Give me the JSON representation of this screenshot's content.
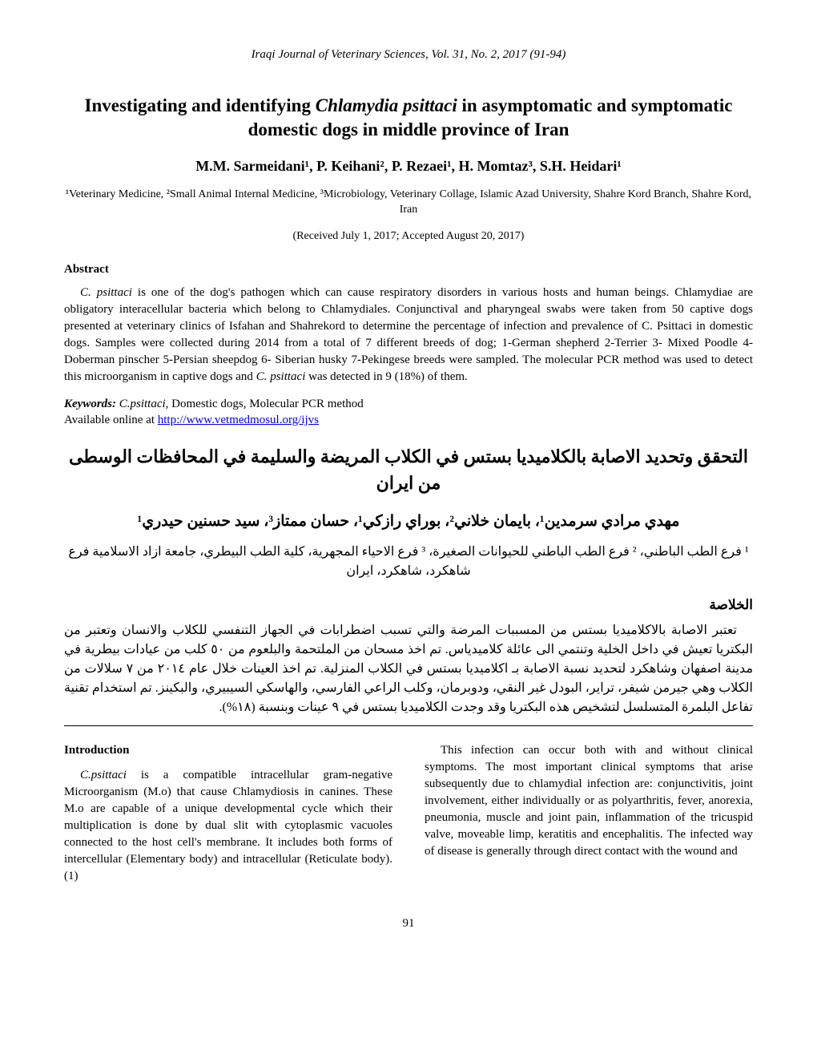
{
  "journal_header": "Iraqi Journal of Veterinary Sciences, Vol. 31, No. 2, 2017 (91-94)",
  "title_line1": "Investigating and identifying ",
  "title_italic": "Chlamydia psittaci",
  "title_line2": " in asymptomatic and symptomatic domestic dogs in middle province of Iran",
  "authors_html": "M.M. Sarmeidani¹, P. Keihani², P. Rezaei¹, H. Momtaz³, S.H. Heidari¹",
  "affiliations": "¹Veterinary Medicine, ²Small Animal Internal Medicine, ³Microbiology, Veterinary Collage, Islamic Azad University, Shahre Kord Branch, Shahre Kord, Iran",
  "dates": "(Received July 1, 2017; Accepted August 20, 2017)",
  "abstract_heading": "Abstract",
  "abstract_italic_lead": "C. psittaci",
  "abstract_text": " is one of the dog's pathogen which can cause respiratory disorders in various hosts and human beings. Chlamydiae are obligatory interacellular bacteria which belong to Chlamydiales. Conjunctival and pharyngeal swabs were taken from 50 captive dogs presented at veterinary clinics of Isfahan and Shahrekord to determine the percentage of infection and prevalence of C. Psittaci in domestic dogs. Samples were collected during 2014 from a total of 7 different breeds of dog; 1-German shepherd 2-Terrier 3- Mixed Poodle 4-Doberman pinscher 5-Persian sheepdog 6- Siberian husky 7-Pekingese breeds were sampled. The molecular PCR method was used to detect this microorganism in captive dogs and ",
  "abstract_italic_trail": "C. psittaci",
  "abstract_trail": " was detected in 9 (18%) of them.",
  "keywords_label": "Keywords:",
  "keywords_italic": " C.psittaci",
  "keywords_rest": ", Domestic dogs, Molecular PCR method",
  "available_text": "Available online at ",
  "link_text": "http://www.vetmedmosul.org/ijvs",
  "arabic_title": "التحقق وتحديد الاصابة بالكلاميديا بستس في الكلاب المريضة والسليمة في المحافظات الوسطى من ايران",
  "arabic_authors": "مهدي مرادي سرمدين¹، بايمان خلاني²، بوراي رازكي¹، حسان ممتاز³، سيد حسنين حيدري¹",
  "arabic_affiliations": "¹ فرع الطب الباطني، ² فرع الطب الباطني للحيوانات الصغيرة، ³ فرع الاحياء المجهرية، كلية الطب البيطري، جامعة ازاد الاسلامية فرع شاهكرد، شاهكرد، ايران",
  "arabic_abstract_heading": "الخلاصة",
  "arabic_abstract": "تعتبر الاصابة بالاكلاميديا بستس من المسببات المرضة والتي تسبب اضطرابات في الجهاز التنفسي للكلاب والانسان وتعتبر من البكتريا تعيش في داخل الخلية وتنتمي الى عائلة كلاميدياس. تم اخذ مسحان من الملتحمة والبلعوم من ٥٠ كلب من عيادات بيطرية في مدينة اصفهان وشاهكرد لتحديد نسبة الاصابة بـ اكلاميديا بستس في الكلاب المنزلية. تم اخذ العينات خلال عام ٢٠١٤ من ٧ سلالات من الكلاب وهي جيرمن شيفر، تراير، البودل غير النقي، ودوبرمان، وكلب الراعي الفارسي، والهاسكي السيبيري، والبكينز. تم استخدام تقنية تفاعل البلمرة المتسلسل لتشخيص هذه البكتريا وقد وجدت الكلاميديا بستس في ٩ عينات وبنسبة (١٨%).",
  "introduction_heading": "Introduction",
  "intro_italic": "C.psittaci",
  "intro_col1": " is a compatible intracellular gram-negative Microorganism (M.o) that cause Chlamydiosis in canines. These M.o are capable of a unique developmental cycle which their multiplication is done by dual slit with cytoplasmic vacuoles connected to the host cell's membrane. It includes both forms of intercellular (Elementary body) and intracellular (Reticulate body). (1)",
  "intro_col2": "This infection can occur both with and without clinical symptoms. The most important clinical symptoms that arise subsequently due to chlamydial infection are: conjunctivitis, joint involvement, either individually or as polyarthritis, fever, anorexia, pneumonia, muscle and joint pain, inflammation of the tricuspid valve, moveable limp, keratitis and encephalitis. The infected way of disease is generally through direct contact with the wound and",
  "page_number": "91",
  "colors": {
    "text": "#000000",
    "background": "#ffffff",
    "link": "#0000ee"
  },
  "fonts": {
    "family": "Times New Roman",
    "body_size": 15,
    "title_size": 23,
    "authors_size": 18
  }
}
